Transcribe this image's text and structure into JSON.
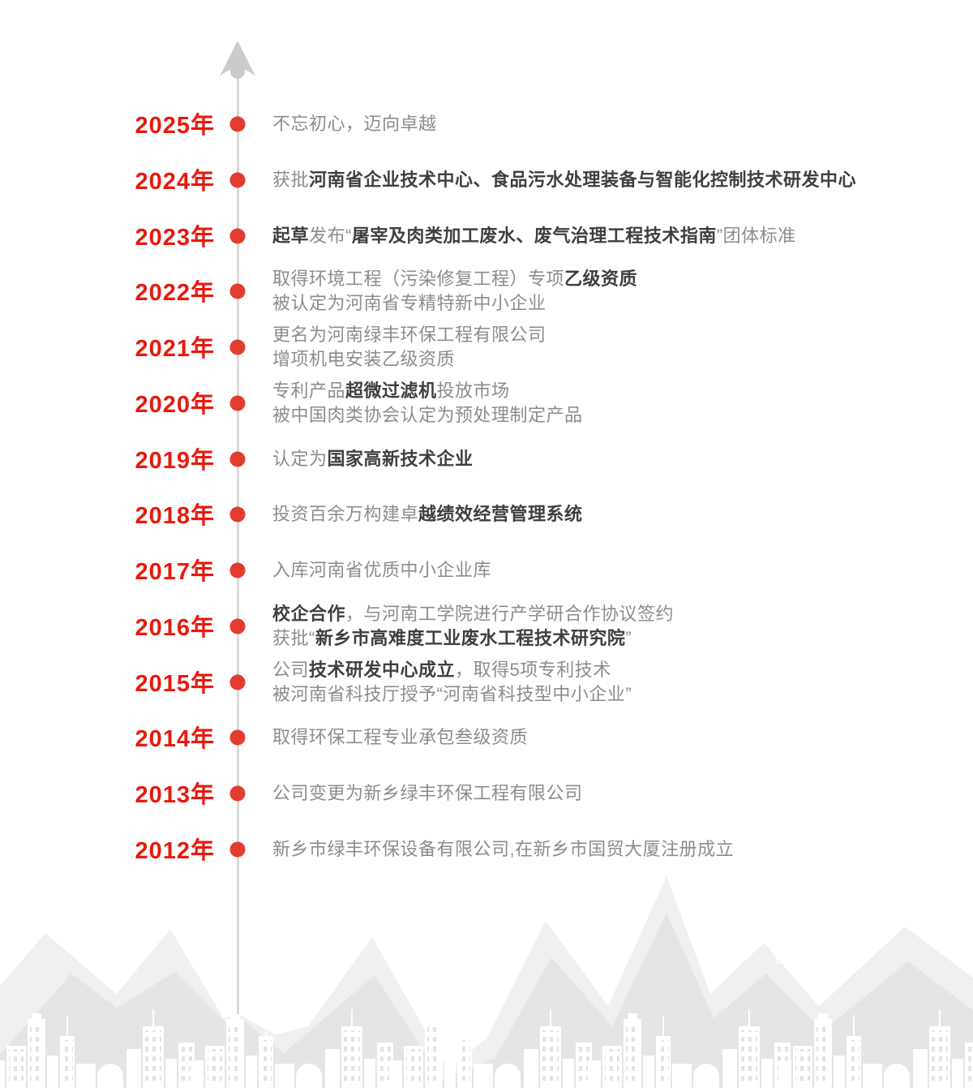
{
  "page": {
    "background": "#ffffff"
  },
  "colors": {
    "year_text": "#e8190d",
    "dot": "#e23b2f",
    "line": "#d9d9d9",
    "arrow": "#cbcbcb",
    "text_regular": "#8c8c8c",
    "text_bold": "#3f3f3f",
    "mountain_back": "#f0f0f0",
    "mountain_front": "#e5e5e5",
    "building": "#ffffff",
    "window": "#e3e3e3"
  },
  "icons": {
    "arrow": "up-arrow-icon",
    "dot": "timeline-dot-icon",
    "mountains": "mountain-silhouette",
    "skyline": "city-skyline",
    "outline_building": "building-outline-icon"
  },
  "timeline": {
    "items": [
      {
        "year": "2025年",
        "lines": [
          [
            {
              "text": "不忘初心，迈向卓越",
              "bold": false
            }
          ]
        ]
      },
      {
        "year": "2024年",
        "lines": [
          [
            {
              "text": "获批",
              "bold": false
            },
            {
              "text": "河南省企业技术中心、食品污水处理装备与智能化控制技术研发中心",
              "bold": true
            }
          ]
        ]
      },
      {
        "year": "2023年",
        "lines": [
          [
            {
              "text": "起草",
              "bold": true
            },
            {
              "text": "发布“",
              "bold": false
            },
            {
              "text": "屠宰及肉类加工废水、废气治理工程技术指南",
              "bold": true
            },
            {
              "text": "”团体标准",
              "bold": false
            }
          ]
        ]
      },
      {
        "year": "2022年",
        "lines": [
          [
            {
              "text": "取得环境工程（污染修复工程）专项",
              "bold": false
            },
            {
              "text": "乙级资质",
              "bold": true
            }
          ],
          [
            {
              "text": "被认定为河南省专精特新中小企业",
              "bold": false
            }
          ]
        ]
      },
      {
        "year": "2021年",
        "lines": [
          [
            {
              "text": "更名为河南绿丰环保工程有限公司",
              "bold": false
            }
          ],
          [
            {
              "text": "增项机电安装乙级资质",
              "bold": false
            }
          ]
        ]
      },
      {
        "year": "2020年",
        "lines": [
          [
            {
              "text": "专利产品",
              "bold": false
            },
            {
              "text": "超微过滤机",
              "bold": true
            },
            {
              "text": "投放市场",
              "bold": false
            }
          ],
          [
            {
              "text": "被中国肉类协会认定为预处理制定产品",
              "bold": false
            }
          ]
        ]
      },
      {
        "year": "2019年",
        "lines": [
          [
            {
              "text": "认定为",
              "bold": false
            },
            {
              "text": "国家高新技术企业",
              "bold": true
            }
          ]
        ]
      },
      {
        "year": "2018年",
        "lines": [
          [
            {
              "text": "投资百余万构建卓",
              "bold": false
            },
            {
              "text": "越绩效经营管理系统",
              "bold": true
            }
          ]
        ]
      },
      {
        "year": "2017年",
        "lines": [
          [
            {
              "text": "入库河南省优质中小企业库",
              "bold": false
            }
          ]
        ]
      },
      {
        "year": "2016年",
        "lines": [
          [
            {
              "text": "校企合作",
              "bold": true
            },
            {
              "text": "，与河南工学院进行产学研合作协议签约",
              "bold": false
            }
          ],
          [
            {
              "text": "获批“",
              "bold": false
            },
            {
              "text": "新乡市高难度工业废水工程技术研究院",
              "bold": true
            },
            {
              "text": "”",
              "bold": false
            }
          ]
        ]
      },
      {
        "year": "2015年",
        "lines": [
          [
            {
              "text": "公司",
              "bold": false
            },
            {
              "text": "技术研发中心成立",
              "bold": true
            },
            {
              "text": "，取得5项专利技术",
              "bold": false
            }
          ],
          [
            {
              "text": "被河南省科技厅授予“河南省科技型中小企业”",
              "bold": false
            }
          ]
        ]
      },
      {
        "year": "2014年",
        "lines": [
          [
            {
              "text": "取得环保工程专业承包叁级资质",
              "bold": false
            }
          ]
        ]
      },
      {
        "year": "2013年",
        "lines": [
          [
            {
              "text": "公司变更为新乡绿丰环保工程有限公司",
              "bold": false
            }
          ]
        ]
      },
      {
        "year": "2012年",
        "lines": [
          [
            {
              "text": "新乡市绿丰环保设备有限公司,在新乡市国贸大厦注册成立",
              "bold": false
            }
          ]
        ]
      }
    ]
  }
}
